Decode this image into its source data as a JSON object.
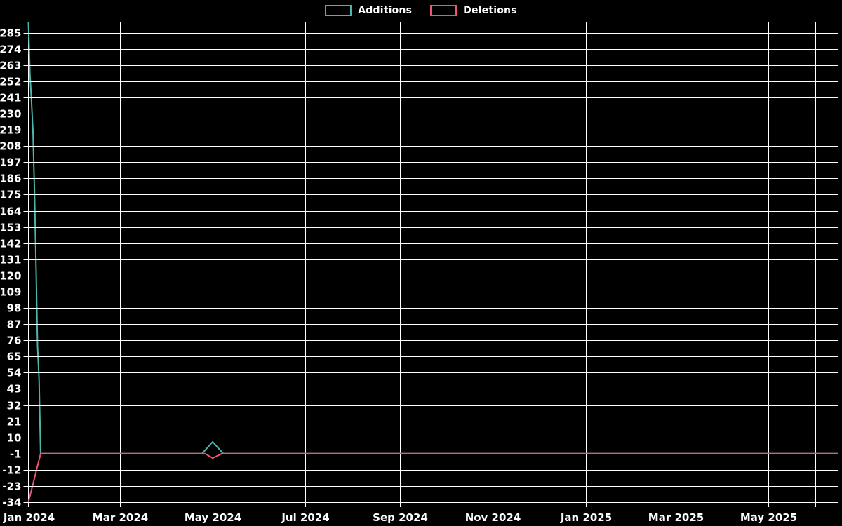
{
  "colors": {
    "background": "#000000",
    "grid": "#ffffff",
    "text": "#ffffff",
    "additions": "#4db6ac",
    "deletions": "#ed5477"
  },
  "legend": {
    "items": [
      {
        "label": "Additions",
        "color": "#4db6ac"
      },
      {
        "label": "Deletions",
        "color": "#ed5477"
      }
    ]
  },
  "chart_data": {
    "type": "line",
    "title": "",
    "xlabel": "",
    "ylabel": "",
    "grid": true,
    "legend_position": "top-center",
    "background": "#000000",
    "x_range": [
      "2024-01-01",
      "2025-06-16"
    ],
    "ylim": [
      -34,
      292
    ],
    "y_tick_step": 11,
    "y_ticks": [
      285,
      274,
      263,
      252,
      241,
      230,
      219,
      208,
      197,
      186,
      175,
      164,
      153,
      142,
      131,
      120,
      109,
      98,
      87,
      76,
      65,
      54,
      43,
      32,
      21,
      10,
      -1,
      -12,
      -23,
      -34
    ],
    "x_ticks": [
      {
        "label": "Jan 2024",
        "date": "2024-01-01"
      },
      {
        "label": "Mar 2024",
        "date": "2024-03-01"
      },
      {
        "label": "May 2024",
        "date": "2024-05-01"
      },
      {
        "label": "Jul 2024",
        "date": "2024-07-01"
      },
      {
        "label": "Sep 2024",
        "date": "2024-09-01"
      },
      {
        "label": "Nov 2024",
        "date": "2024-11-01"
      },
      {
        "label": "Jan 2025",
        "date": "2025-01-01"
      },
      {
        "label": "Mar 2025",
        "date": "2025-03-01"
      },
      {
        "label": "May 2025",
        "date": "2025-05-01"
      },
      {
        "label": "",
        "date": "2025-06-01"
      }
    ],
    "series": [
      {
        "name": "Additions",
        "color": "#4db6ac",
        "points": [
          {
            "date": "2024-01-01",
            "value": 292
          },
          {
            "date": "2024-01-02",
            "value": 257
          },
          {
            "date": "2024-01-03",
            "value": 239
          },
          {
            "date": "2024-01-04",
            "value": 218
          },
          {
            "date": "2024-01-05",
            "value": 176
          },
          {
            "date": "2024-01-06",
            "value": 125
          },
          {
            "date": "2024-01-07",
            "value": 72
          },
          {
            "date": "2024-01-08",
            "value": 49
          },
          {
            "date": "2024-01-09",
            "value": -1
          },
          {
            "date": "2024-04-24",
            "value": -1
          },
          {
            "date": "2024-05-01",
            "value": 7
          },
          {
            "date": "2024-05-08",
            "value": -1
          },
          {
            "date": "2025-06-16",
            "value": -1
          }
        ]
      },
      {
        "name": "Deletions",
        "color": "#ed5477",
        "points": [
          {
            "date": "2024-01-01",
            "value": -34
          },
          {
            "date": "2024-01-09",
            "value": -1
          },
          {
            "date": "2024-04-26",
            "value": -1
          },
          {
            "date": "2024-05-01",
            "value": -4
          },
          {
            "date": "2024-05-07",
            "value": -1
          },
          {
            "date": "2025-06-16",
            "value": -1
          }
        ]
      }
    ]
  }
}
